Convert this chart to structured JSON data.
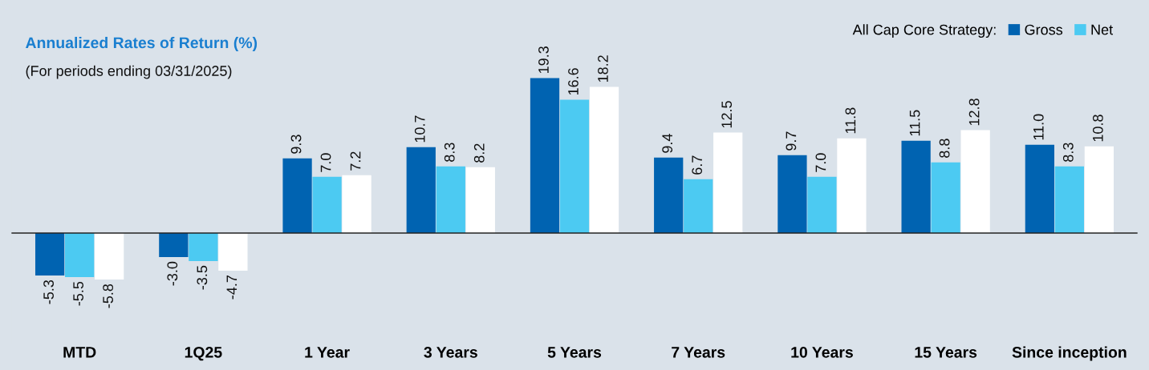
{
  "chart_data": {
    "type": "bar",
    "title": "Annualized Rates of Return (%)",
    "subtitle": "(For periods ending 03/31/2025)",
    "legend_title": "All Cap Core Strategy:",
    "categories": [
      "MTD",
      "1Q25",
      "1 Year",
      "3 Years",
      "5 Years",
      "7 Years",
      "10 Years",
      "15 Years",
      "Since inception"
    ],
    "series": [
      {
        "name": "Gross",
        "color": "#0063b1",
        "values": [
          -5.3,
          -3.0,
          9.3,
          10.7,
          19.3,
          9.4,
          9.7,
          11.5,
          11.0
        ],
        "value_labels": [
          "-5.3",
          "-3.0",
          "9.3",
          "10.7",
          "19.3",
          "9.4",
          "9.7",
          "11.5",
          "11.0"
        ]
      },
      {
        "name": "Net",
        "color": "#4ccaf2",
        "values": [
          -5.5,
          -3.5,
          7.0,
          8.3,
          16.6,
          6.7,
          7.0,
          8.8,
          8.3
        ],
        "value_labels": [
          "-5.5",
          "-3.5",
          "7.0",
          "8.3",
          "16.6",
          "6.7",
          "7.0",
          "8.8",
          "8.3"
        ]
      },
      {
        "color": "#ffffff",
        "values": [
          -5.8,
          -4.7,
          7.2,
          8.2,
          18.2,
          12.5,
          11.8,
          12.8,
          10.8
        ],
        "value_labels": [
          "-5.8",
          "-4.7",
          "7.2",
          "8.2",
          "18.2",
          "12.5",
          "11.8",
          "12.8",
          "10.8"
        ]
      }
    ],
    "legend": "top right",
    "grid": false
  }
}
